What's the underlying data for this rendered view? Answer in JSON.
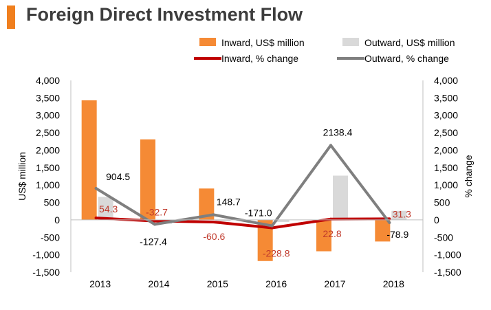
{
  "header": {
    "title": "Foreign Direct Investment Flow"
  },
  "colors": {
    "accent": "#f07f1e",
    "inward_bar": "#f58a35",
    "outward_bar": "#d9d9d9",
    "inward_line": "#c00000",
    "outward_line": "#7f7f7f"
  },
  "chart_data": {
    "type": "bar",
    "title": "Foreign Direct Investment Flow",
    "categories": [
      "2013",
      "2014",
      "2015",
      "2016",
      "2017",
      "2018"
    ],
    "ylabel": "US$ million",
    "y2label": "% change",
    "ylim": [
      -1500,
      4000
    ],
    "y2lim": [
      -1500,
      4000
    ],
    "yticks": [
      "4,000",
      "3,500",
      "3,000",
      "2,500",
      "2,000",
      "1,500",
      "1,000",
      "500",
      "0",
      "-500",
      "-1,000",
      "-1,500"
    ],
    "ytick_values": [
      4000,
      3500,
      3000,
      2500,
      2000,
      1500,
      1000,
      500,
      0,
      -500,
      -1000,
      -1500
    ],
    "series": [
      {
        "name": "Inward, US$ million",
        "kind": "bar",
        "values": [
          3430,
          2310,
          900,
          -1180,
          -900,
          -620
        ]
      },
      {
        "name": "Outward, US$ million",
        "kind": "bar",
        "values": [
          660,
          -110,
          -40,
          -60,
          1270,
          260
        ]
      },
      {
        "name": "Inward, % change",
        "kind": "line",
        "values": [
          54.3,
          -32.7,
          -60.6,
          -228.8,
          22.8,
          31.3
        ],
        "labels": [
          "54.3",
          "-32.7",
          "-60.6",
          "-228.8",
          "22.8",
          "31.3"
        ]
      },
      {
        "name": "Outward, % change",
        "kind": "line",
        "values": [
          904.5,
          -127.4,
          148.7,
          -171.0,
          2138.4,
          -78.9
        ],
        "labels": [
          "904.5",
          "-127.4",
          "148.7",
          "-171.0",
          "2138.4",
          "-78.9"
        ]
      }
    ],
    "legend": [
      "Inward, US$ million",
      "Outward, US$ million",
      "Inward, % change",
      "Outward, % change"
    ],
    "legend_position": "top-right"
  }
}
